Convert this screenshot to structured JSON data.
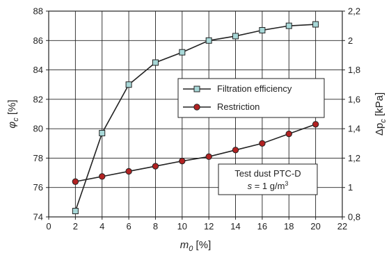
{
  "chart_data": {
    "type": "line",
    "x": [
      2,
      4,
      6,
      8,
      10,
      12,
      14,
      16,
      18,
      20
    ],
    "xlabel": {
      "main": "m",
      "sub": "0",
      "unit": " [%]"
    },
    "xlim": [
      0,
      22
    ],
    "xticks": [
      0,
      2,
      4,
      6,
      8,
      10,
      12,
      14,
      16,
      18,
      20,
      22
    ],
    "ylabel": {
      "main": "φ",
      "sub": "c",
      "unit": " [%]"
    },
    "ylim": [
      74,
      88
    ],
    "yticks": [
      74,
      76,
      78,
      80,
      82,
      84,
      86,
      88
    ],
    "y2label": {
      "main": "Δp",
      "sub": "c",
      "unit": " [kPa]"
    },
    "y2lim": [
      0.8,
      2.2
    ],
    "y2ticks": [
      "0,8",
      "1",
      "1,2",
      "1,4",
      "1,6",
      "1,8",
      "2",
      "2,2"
    ],
    "grid": true,
    "legend_position": "upper-right",
    "series": [
      {
        "name": "Filtration efficiency",
        "axis": "left",
        "marker": "square",
        "color": "#a8d8d8",
        "values": [
          74.4,
          79.7,
          83.0,
          84.5,
          85.2,
          86.0,
          86.3,
          86.7,
          87.0,
          87.1
        ]
      },
      {
        "name": "Restriction",
        "axis": "right",
        "marker": "circle",
        "color": "#b22222",
        "values": [
          1.04,
          1.075,
          1.11,
          1.145,
          1.18,
          1.21,
          1.255,
          1.3,
          1.365,
          1.43
        ]
      }
    ],
    "annotation": {
      "line1": "Test dust PTC-D",
      "line2_var": "s",
      "line2_eq": " = 1 g/m",
      "line2_sup": "3"
    }
  }
}
